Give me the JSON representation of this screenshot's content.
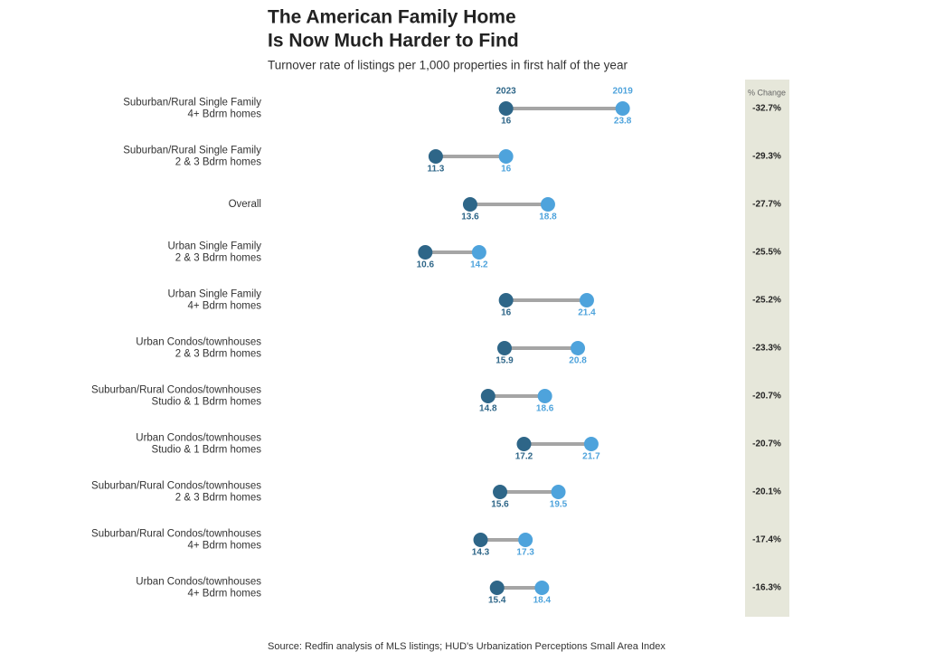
{
  "chart_data": {
    "type": "dumbbell",
    "title": [
      "The American Family Home",
      "Is Now Much Harder to Find"
    ],
    "subtitle": "Turnover rate of listings per 1,000 properties in first half of the year",
    "source": "Source: Redfin analysis of MLS listings; HUD's Urbanization Perceptions Small Area Index",
    "categories": [
      [
        "Suburban/Rural Single Family",
        "4+ Bdrm homes"
      ],
      [
        "Suburban/Rural Single Family",
        "2 & 3 Bdrm homes"
      ],
      [
        "Overall"
      ],
      [
        "Urban Single Family",
        "2 & 3 Bdrm homes"
      ],
      [
        "Urban Single Family",
        "4+ Bdrm homes"
      ],
      [
        "Urban Condos/townhouses",
        "2 & 3 Bdrm homes"
      ],
      [
        "Suburban/Rural Condos/townhouses",
        "Studio & 1 Bdrm homes"
      ],
      [
        "Urban Condos/townhouses",
        "Studio & 1 Bdrm homes"
      ],
      [
        "Suburban/Rural Condos/townhouses",
        "2 & 3 Bdrm homes"
      ],
      [
        "Suburban/Rural Condos/townhouses",
        "4+ Bdrm homes"
      ],
      [
        "Urban Condos/townhouses",
        "4+ Bdrm homes"
      ]
    ],
    "series": [
      {
        "name": "2023",
        "color": "#2e6688",
        "values": [
          16,
          11.3,
          13.6,
          10.6,
          16,
          15.9,
          14.8,
          17.2,
          15.6,
          14.3,
          15.4
        ]
      },
      {
        "name": "2019",
        "color": "#4ea3dc",
        "values": [
          23.8,
          16,
          18.8,
          14.2,
          21.4,
          20.8,
          18.6,
          21.7,
          19.5,
          17.3,
          18.4
        ]
      }
    ],
    "pct_change": {
      "title": "% Change",
      "values": [
        -32.7,
        -29.3,
        -27.7,
        -25.5,
        -25.2,
        -23.3,
        -20.7,
        -20.7,
        -20.1,
        -17.4,
        -16.3
      ],
      "value_labels": [
        "-32.7%",
        "-29.3%",
        "-27.7%",
        "-25.5%",
        "-25.2%",
        "-23.3%",
        "-20.7%",
        "-20.7%",
        "-20.1%",
        "-17.4%",
        "-16.3%"
      ]
    }
  }
}
